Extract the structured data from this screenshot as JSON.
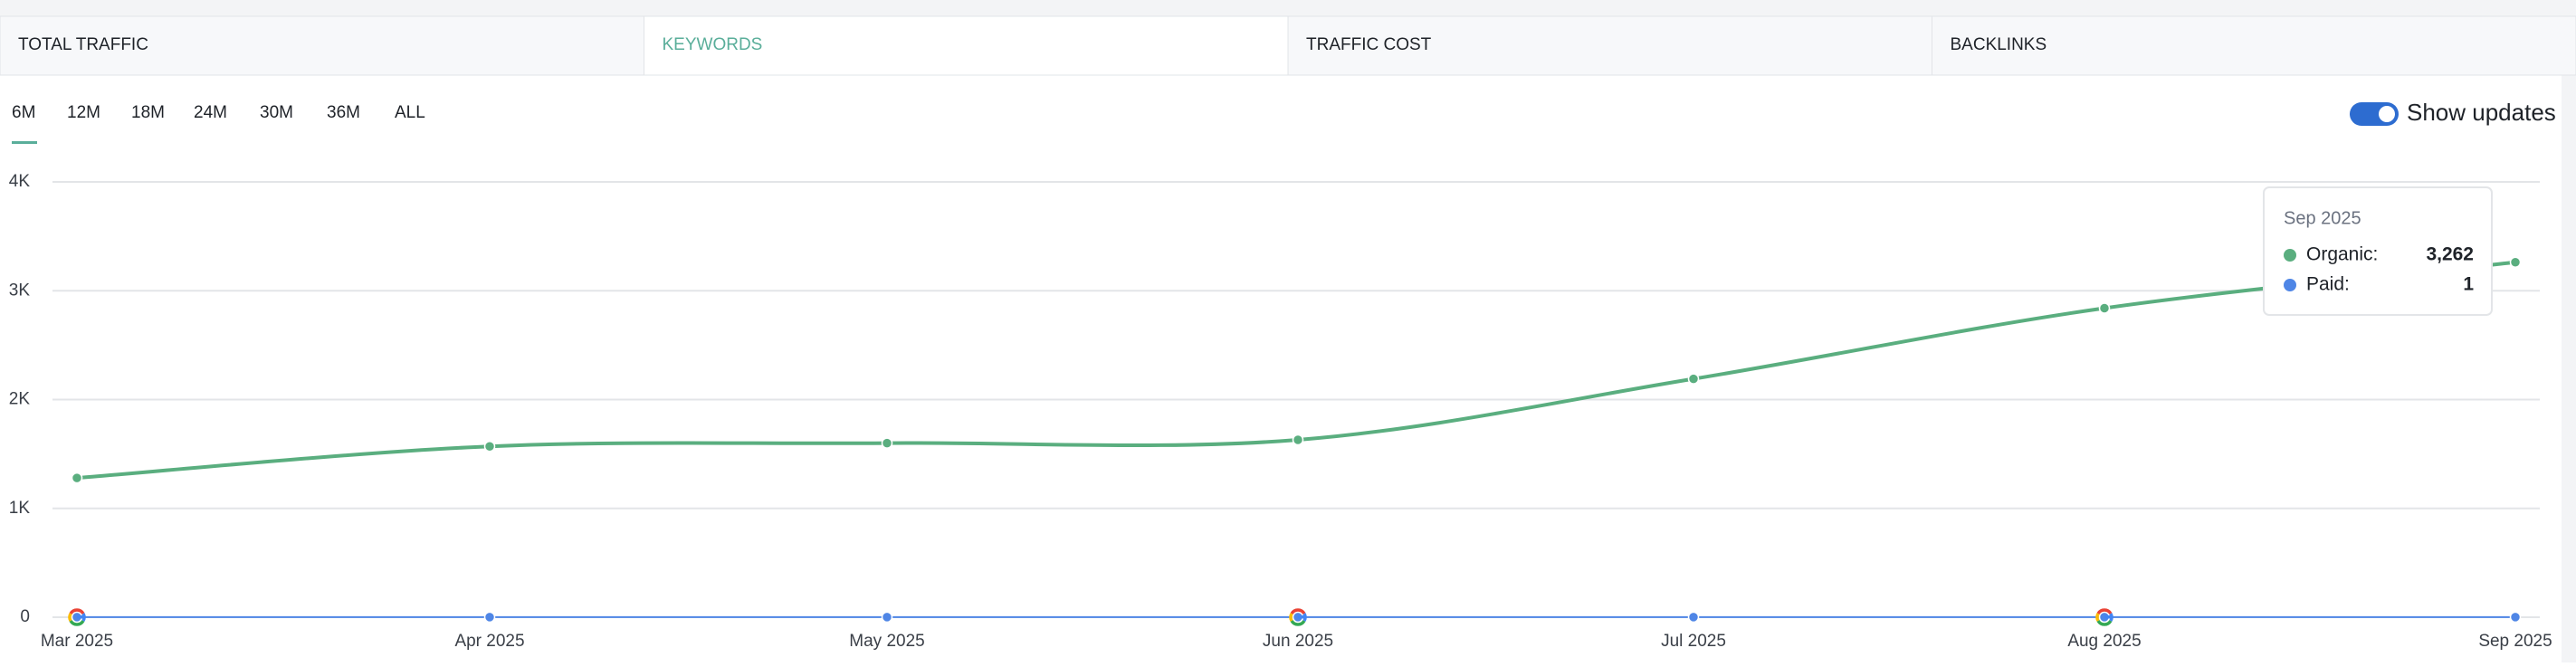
{
  "tabs": [
    "TOTAL TRAFFIC",
    "KEYWORDS",
    "TRAFFIC COST",
    "BACKLINKS"
  ],
  "active_tab": 1,
  "periods": [
    "6M",
    "12M",
    "18M",
    "24M",
    "30M",
    "36M",
    "ALL"
  ],
  "active_period": 0,
  "toggle": {
    "label": "Show updates",
    "on": true
  },
  "chart_data": {
    "type": "line",
    "categories": [
      "Mar 2025",
      "Apr 2025",
      "May 2025",
      "Jun 2025",
      "Jul 2025",
      "Aug 2025",
      "Sep 2025"
    ],
    "series": [
      {
        "name": "Organic",
        "color": "#5aae7f",
        "values": [
          1280,
          1570,
          1600,
          1630,
          2190,
          2840,
          3262
        ]
      },
      {
        "name": "Paid",
        "color": "#4f86e6",
        "values": [
          1,
          1,
          1,
          1,
          1,
          1,
          1
        ]
      }
    ],
    "ylim": [
      0,
      4000
    ],
    "yticks": [
      0,
      {
        "value": 1000,
        "label": "1K"
      },
      {
        "value": 2000,
        "label": "2K"
      },
      {
        "value": 3000,
        "label": "3K"
      },
      {
        "value": 4000,
        "label": "4K"
      }
    ],
    "grid": true,
    "tooltip": {
      "title": "Sep 2025",
      "rows": [
        {
          "label": "Organic:",
          "value": "3,262"
        },
        {
          "label": "Paid:",
          "value": "1"
        }
      ]
    }
  }
}
